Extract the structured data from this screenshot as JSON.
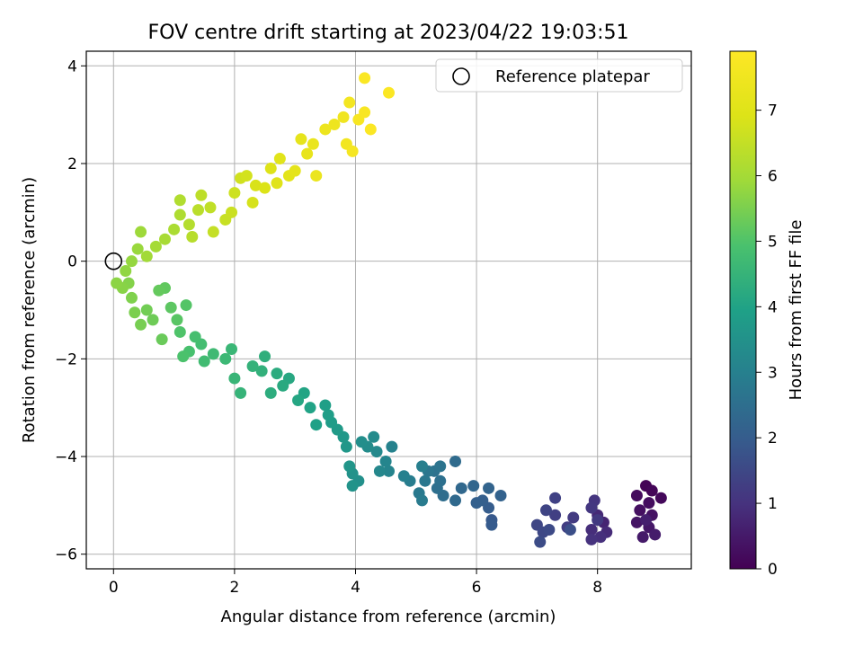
{
  "chart_data": {
    "type": "scatter",
    "title": "FOV centre drift starting at 2023/04/22 19:03:51",
    "xlabel": "Angular distance from reference (arcmin)",
    "ylabel": "Rotation from reference (arcmin)",
    "xlim": [
      -0.45,
      9.55
    ],
    "ylim": [
      -6.3,
      4.3
    ],
    "x_ticks": [
      0,
      2,
      4,
      6,
      8
    ],
    "y_ticks": [
      -6,
      -4,
      -2,
      0,
      2,
      4
    ],
    "x_tick_labels": [
      "0",
      "2",
      "4",
      "6",
      "8"
    ],
    "y_tick_labels": [
      "−6",
      "−4",
      "−2",
      "0",
      "2",
      "4"
    ],
    "grid": true,
    "colormap": "viridis",
    "colorbar": {
      "label": "Hours from first FF file",
      "min": 0,
      "max": 7.9,
      "ticks": [
        0,
        1,
        2,
        3,
        4,
        5,
        6,
        7
      ],
      "tick_labels": [
        "0",
        "1",
        "2",
        "3",
        "4",
        "5",
        "6",
        "7"
      ]
    },
    "legend": {
      "position": "top-right",
      "entries": [
        "Reference platepar"
      ]
    },
    "reference_point": {
      "x": 0,
      "y": 0
    },
    "series": [
      {
        "colored_by": "hours",
        "points": [
          {
            "x": 8.8,
            "y": -4.6,
            "c": 0.05
          },
          {
            "x": 8.9,
            "y": -4.7,
            "c": 0.1
          },
          {
            "x": 9.05,
            "y": -4.85,
            "c": 0.15
          },
          {
            "x": 8.65,
            "y": -4.8,
            "c": 0.2
          },
          {
            "x": 8.85,
            "y": -4.95,
            "c": 0.25
          },
          {
            "x": 8.7,
            "y": -5.1,
            "c": 0.3
          },
          {
            "x": 8.9,
            "y": -5.2,
            "c": 0.35
          },
          {
            "x": 8.65,
            "y": -5.35,
            "c": 0.4
          },
          {
            "x": 8.85,
            "y": -5.45,
            "c": 0.45
          },
          {
            "x": 8.75,
            "y": -5.65,
            "c": 0.5
          },
          {
            "x": 8.95,
            "y": -5.6,
            "c": 0.55
          },
          {
            "x": 8.8,
            "y": -5.3,
            "c": 0.6
          },
          {
            "x": 8.1,
            "y": -5.35,
            "c": 0.7
          },
          {
            "x": 8.0,
            "y": -5.2,
            "c": 0.8
          },
          {
            "x": 8.15,
            "y": -5.55,
            "c": 0.85
          },
          {
            "x": 7.9,
            "y": -5.5,
            "c": 0.9
          },
          {
            "x": 8.05,
            "y": -5.65,
            "c": 0.95
          },
          {
            "x": 7.9,
            "y": -5.7,
            "c": 1.0
          },
          {
            "x": 7.95,
            "y": -4.9,
            "c": 1.05
          },
          {
            "x": 7.9,
            "y": -5.05,
            "c": 1.1
          },
          {
            "x": 8.0,
            "y": -5.3,
            "c": 1.15
          },
          {
            "x": 7.6,
            "y": -5.25,
            "c": 1.2
          },
          {
            "x": 7.5,
            "y": -5.45,
            "c": 1.25
          },
          {
            "x": 7.3,
            "y": -5.2,
            "c": 1.3
          },
          {
            "x": 7.3,
            "y": -4.85,
            "c": 1.35
          },
          {
            "x": 7.15,
            "y": -5.1,
            "c": 1.4
          },
          {
            "x": 7.0,
            "y": -5.4,
            "c": 1.45
          },
          {
            "x": 7.1,
            "y": -5.55,
            "c": 1.5
          },
          {
            "x": 7.2,
            "y": -5.5,
            "c": 1.55
          },
          {
            "x": 7.05,
            "y": -5.75,
            "c": 1.6
          },
          {
            "x": 7.55,
            "y": -5.5,
            "c": 1.65
          },
          {
            "x": 6.25,
            "y": -5.3,
            "c": 1.9
          },
          {
            "x": 6.25,
            "y": -5.4,
            "c": 1.95
          },
          {
            "x": 6.2,
            "y": -5.05,
            "c": 2.0
          },
          {
            "x": 6.1,
            "y": -4.9,
            "c": 2.05
          },
          {
            "x": 6.0,
            "y": -4.95,
            "c": 2.1
          },
          {
            "x": 6.4,
            "y": -4.8,
            "c": 2.15
          },
          {
            "x": 6.2,
            "y": -4.65,
            "c": 2.2
          },
          {
            "x": 5.95,
            "y": -4.6,
            "c": 2.25
          },
          {
            "x": 5.75,
            "y": -4.65,
            "c": 2.3
          },
          {
            "x": 5.65,
            "y": -4.9,
            "c": 2.35
          },
          {
            "x": 5.65,
            "y": -4.1,
            "c": 2.4
          },
          {
            "x": 5.45,
            "y": -4.8,
            "c": 2.45
          },
          {
            "x": 5.35,
            "y": -4.65,
            "c": 2.5
          },
          {
            "x": 5.4,
            "y": -4.5,
            "c": 2.55
          },
          {
            "x": 5.3,
            "y": -4.3,
            "c": 2.6
          },
          {
            "x": 5.4,
            "y": -4.2,
            "c": 2.65
          },
          {
            "x": 5.2,
            "y": -4.3,
            "c": 2.7
          },
          {
            "x": 5.15,
            "y": -4.5,
            "c": 2.75
          },
          {
            "x": 5.05,
            "y": -4.75,
            "c": 2.8
          },
          {
            "x": 5.1,
            "y": -4.9,
            "c": 2.85
          },
          {
            "x": 4.9,
            "y": -4.5,
            "c": 2.9
          },
          {
            "x": 5.1,
            "y": -4.2,
            "c": 2.95
          },
          {
            "x": 4.8,
            "y": -4.4,
            "c": 3.0
          },
          {
            "x": 4.6,
            "y": -3.8,
            "c": 3.05
          },
          {
            "x": 4.55,
            "y": -4.3,
            "c": 3.1
          },
          {
            "x": 4.5,
            "y": -4.1,
            "c": 3.15
          },
          {
            "x": 4.4,
            "y": -4.3,
            "c": 3.2
          },
          {
            "x": 4.35,
            "y": -3.9,
            "c": 3.25
          },
          {
            "x": 4.3,
            "y": -3.6,
            "c": 3.3
          },
          {
            "x": 4.2,
            "y": -3.8,
            "c": 3.35
          },
          {
            "x": 4.1,
            "y": -3.7,
            "c": 3.4
          },
          {
            "x": 4.05,
            "y": -4.5,
            "c": 3.45
          },
          {
            "x": 3.95,
            "y": -4.35,
            "c": 3.5
          },
          {
            "x": 3.95,
            "y": -4.6,
            "c": 3.55
          },
          {
            "x": 3.9,
            "y": -4.2,
            "c": 3.6
          },
          {
            "x": 3.85,
            "y": -3.8,
            "c": 3.65
          },
          {
            "x": 3.8,
            "y": -3.6,
            "c": 3.7
          },
          {
            "x": 3.7,
            "y": -3.45,
            "c": 3.75
          },
          {
            "x": 3.6,
            "y": -3.3,
            "c": 3.8
          },
          {
            "x": 3.55,
            "y": -3.15,
            "c": 3.85
          },
          {
            "x": 3.5,
            "y": -2.95,
            "c": 3.9
          },
          {
            "x": 3.35,
            "y": -3.35,
            "c": 3.95
          },
          {
            "x": 3.25,
            "y": -3.0,
            "c": 4.0
          },
          {
            "x": 3.15,
            "y": -2.7,
            "c": 4.05
          },
          {
            "x": 3.05,
            "y": -2.85,
            "c": 4.1
          },
          {
            "x": 2.9,
            "y": -2.4,
            "c": 4.15
          },
          {
            "x": 2.8,
            "y": -2.55,
            "c": 4.2
          },
          {
            "x": 2.7,
            "y": -2.3,
            "c": 4.25
          },
          {
            "x": 2.6,
            "y": -2.7,
            "c": 4.3
          },
          {
            "x": 2.5,
            "y": -1.95,
            "c": 4.35
          },
          {
            "x": 2.45,
            "y": -2.25,
            "c": 4.4
          },
          {
            "x": 2.3,
            "y": -2.15,
            "c": 4.45
          },
          {
            "x": 2.1,
            "y": -2.7,
            "c": 4.5
          },
          {
            "x": 2.0,
            "y": -2.4,
            "c": 4.55
          },
          {
            "x": 1.95,
            "y": -1.8,
            "c": 4.6
          },
          {
            "x": 1.85,
            "y": -2.0,
            "c": 4.65
          },
          {
            "x": 1.65,
            "y": -1.9,
            "c": 4.7
          },
          {
            "x": 1.5,
            "y": -2.05,
            "c": 4.75
          },
          {
            "x": 1.45,
            "y": -1.7,
            "c": 4.8
          },
          {
            "x": 1.35,
            "y": -1.55,
            "c": 4.85
          },
          {
            "x": 1.25,
            "y": -1.85,
            "c": 4.9
          },
          {
            "x": 1.15,
            "y": -1.95,
            "c": 4.95
          },
          {
            "x": 1.1,
            "y": -1.45,
            "c": 5.0
          },
          {
            "x": 1.2,
            "y": -0.9,
            "c": 5.05
          },
          {
            "x": 1.05,
            "y": -1.2,
            "c": 5.1
          },
          {
            "x": 0.95,
            "y": -0.95,
            "c": 5.15
          },
          {
            "x": 0.85,
            "y": -0.55,
            "c": 5.2
          },
          {
            "x": 0.75,
            "y": -0.6,
            "c": 5.25
          },
          {
            "x": 0.8,
            "y": -1.6,
            "c": 5.3
          },
          {
            "x": 0.65,
            "y": -1.2,
            "c": 5.35
          },
          {
            "x": 0.55,
            "y": -1.0,
            "c": 5.4
          },
          {
            "x": 0.45,
            "y": -1.3,
            "c": 5.45
          },
          {
            "x": 0.35,
            "y": -1.05,
            "c": 5.5
          },
          {
            "x": 0.3,
            "y": -0.75,
            "c": 5.55
          },
          {
            "x": 0.25,
            "y": -0.45,
            "c": 5.6
          },
          {
            "x": 0.15,
            "y": -0.55,
            "c": 5.65
          },
          {
            "x": 0.05,
            "y": -0.45,
            "c": 5.7
          },
          {
            "x": 0.2,
            "y": -0.2,
            "c": 5.75
          },
          {
            "x": 0.3,
            "y": 0.0,
            "c": 5.8
          },
          {
            "x": 0.4,
            "y": 0.25,
            "c": 5.85
          },
          {
            "x": 0.45,
            "y": 0.6,
            "c": 5.9
          },
          {
            "x": 0.55,
            "y": 0.1,
            "c": 5.95
          },
          {
            "x": 0.7,
            "y": 0.3,
            "c": 6.0
          },
          {
            "x": 0.85,
            "y": 0.45,
            "c": 6.05
          },
          {
            "x": 1.0,
            "y": 0.65,
            "c": 6.1
          },
          {
            "x": 1.1,
            "y": 0.95,
            "c": 6.15
          },
          {
            "x": 1.1,
            "y": 1.25,
            "c": 6.2
          },
          {
            "x": 1.25,
            "y": 0.75,
            "c": 6.25
          },
          {
            "x": 1.3,
            "y": 0.5,
            "c": 6.3
          },
          {
            "x": 1.4,
            "y": 1.05,
            "c": 6.35
          },
          {
            "x": 1.45,
            "y": 1.35,
            "c": 6.4
          },
          {
            "x": 1.6,
            "y": 1.1,
            "c": 6.45
          },
          {
            "x": 1.65,
            "y": 0.6,
            "c": 6.5
          },
          {
            "x": 1.85,
            "y": 0.85,
            "c": 6.55
          },
          {
            "x": 1.95,
            "y": 1.0,
            "c": 6.6
          },
          {
            "x": 2.0,
            "y": 1.4,
            "c": 6.65
          },
          {
            "x": 2.1,
            "y": 1.7,
            "c": 6.7
          },
          {
            "x": 2.2,
            "y": 1.75,
            "c": 6.75
          },
          {
            "x": 2.3,
            "y": 1.2,
            "c": 6.8
          },
          {
            "x": 2.35,
            "y": 1.55,
            "c": 6.85
          },
          {
            "x": 2.5,
            "y": 1.5,
            "c": 6.9
          },
          {
            "x": 2.6,
            "y": 1.9,
            "c": 6.95
          },
          {
            "x": 2.7,
            "y": 1.6,
            "c": 7.0
          },
          {
            "x": 2.75,
            "y": 2.1,
            "c": 7.05
          },
          {
            "x": 2.9,
            "y": 1.75,
            "c": 7.1
          },
          {
            "x": 3.0,
            "y": 1.85,
            "c": 7.15
          },
          {
            "x": 3.1,
            "y": 2.5,
            "c": 7.2
          },
          {
            "x": 3.2,
            "y": 2.2,
            "c": 7.25
          },
          {
            "x": 3.3,
            "y": 2.4,
            "c": 7.3
          },
          {
            "x": 3.35,
            "y": 1.75,
            "c": 7.35
          },
          {
            "x": 3.5,
            "y": 2.7,
            "c": 7.4
          },
          {
            "x": 3.65,
            "y": 2.8,
            "c": 7.45
          },
          {
            "x": 3.8,
            "y": 2.95,
            "c": 7.5
          },
          {
            "x": 3.85,
            "y": 2.4,
            "c": 7.55
          },
          {
            "x": 3.9,
            "y": 3.25,
            "c": 7.6
          },
          {
            "x": 3.95,
            "y": 2.25,
            "c": 7.65
          },
          {
            "x": 4.05,
            "y": 2.9,
            "c": 7.7
          },
          {
            "x": 4.15,
            "y": 3.05,
            "c": 7.75
          },
          {
            "x": 4.15,
            "y": 3.75,
            "c": 7.8
          },
          {
            "x": 4.55,
            "y": 3.45,
            "c": 7.85
          },
          {
            "x": 4.25,
            "y": 2.7,
            "c": 7.85
          }
        ]
      }
    ]
  }
}
